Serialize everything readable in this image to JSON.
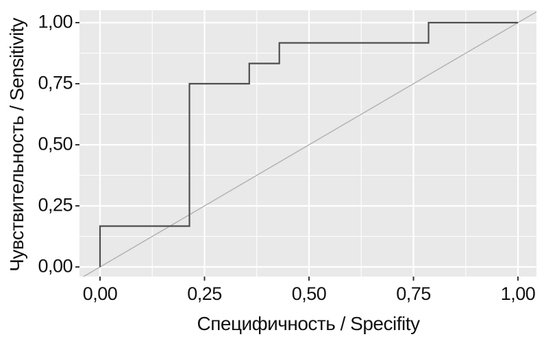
{
  "chart_data": {
    "type": "line",
    "subtype": "roc_step_curve",
    "title": "",
    "xlabel": "Специфичность / Specifity",
    "ylabel": "Чувствительность / Sensitivity",
    "xlim": [
      0,
      1
    ],
    "ylim": [
      0,
      1
    ],
    "x_ticks": {
      "values": [
        0,
        0.25,
        0.5,
        0.75,
        1
      ],
      "labels": [
        "0,00",
        "0,25",
        "0,50",
        "0,75",
        "1,00"
      ]
    },
    "y_ticks": {
      "values": [
        0,
        0.25,
        0.5,
        0.75,
        1
      ],
      "labels": [
        "0,00",
        "0,25",
        "0,50",
        "0,75",
        "1,00"
      ]
    },
    "minor_gridlines": [
      0.125,
      0.375,
      0.625,
      0.875
    ],
    "grid": "major and minor white gridlines on grey panel",
    "legend_position": "none",
    "colors": {
      "background": "#ffffff",
      "panel_background": "#e9e9e9",
      "grid_major": "#ffffff",
      "grid_minor": "#ffffff",
      "tick_marks": "#333333",
      "text": "#111111"
    },
    "series": [
      {
        "name": "chance_diagonal",
        "draw": "abline",
        "color": "#b3b3b3",
        "stroke_width": 1.5,
        "points": [
          [
            0,
            0
          ],
          [
            1,
            1
          ]
        ]
      },
      {
        "name": "roc_curve",
        "draw": "step",
        "color": "#4d4d4d",
        "stroke_width": 2.2,
        "points": [
          [
            0,
            0
          ],
          [
            0,
            0.167
          ],
          [
            0.214,
            0.167
          ],
          [
            0.214,
            0.75
          ],
          [
            0.357,
            0.75
          ],
          [
            0.357,
            0.833
          ],
          [
            0.429,
            0.833
          ],
          [
            0.429,
            0.917
          ],
          [
            0.786,
            0.917
          ],
          [
            0.786,
            1.0
          ],
          [
            1.0,
            1.0
          ]
        ]
      }
    ]
  }
}
